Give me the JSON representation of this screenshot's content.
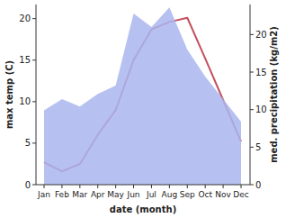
{
  "chart_data": {
    "type": "line",
    "x_label": "date (month)",
    "y_label": "max temp (C)",
    "y2_label": "med. precipitation (kg/m2)",
    "categories": [
      "Jan",
      "Feb",
      "Mar",
      "Apr",
      "May",
      "Jun",
      "Jul",
      "Aug",
      "Sep",
      "Oct",
      "Nov",
      "Dec"
    ],
    "ylim": [
      0,
      21.7
    ],
    "yticks": [
      0,
      5,
      10,
      15,
      20
    ],
    "y2lim": [
      0,
      24
    ],
    "y2ticks": [
      0,
      5,
      10,
      15,
      20
    ],
    "grid": false,
    "series": [
      {
        "type": "area",
        "axis": "y2",
        "color": "#a9b6ef",
        "values": [
          9.9,
          11.4,
          10.4,
          12.1,
          13.2,
          22.8,
          21.0,
          23.6,
          18.0,
          14.4,
          11.4,
          8.4
        ]
      },
      {
        "type": "line",
        "color": "#c4505e",
        "values": [
          2.7,
          1.6,
          2.5,
          6.0,
          9.0,
          15.0,
          18.7,
          19.6,
          20.1,
          15.2,
          10.2,
          5.2
        ]
      }
    ]
  }
}
